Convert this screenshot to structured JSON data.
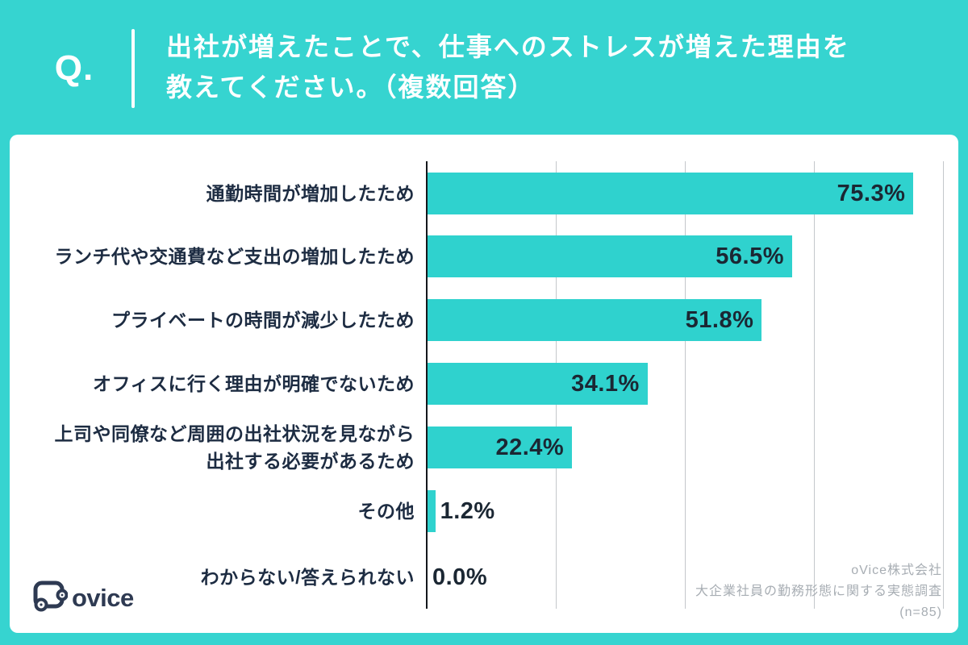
{
  "theme": {
    "teal": "#36d4d0",
    "bar": "#2fd2ce",
    "ink": "#1b2733",
    "label": "#1d2c42",
    "grid": "#c4c7cb",
    "axis": "#14181c",
    "source": "#a7adb3",
    "logo": "#2e3a52",
    "card": "#ffffff"
  },
  "header": {
    "q_label": "Q.",
    "title_line1": "出社が増えたことで、仕事へのストレスが増えた理由を",
    "title_line2": "教えてください。（複数回答）"
  },
  "chart_data": {
    "type": "bar",
    "orientation": "horizontal",
    "title": "出社が増えたことで、仕事へのストレスが増えた理由を教えてください。（複数回答）",
    "categories": [
      "通勤時間が増加したため",
      "ランチ代や交通費など支出の増加したため",
      "プライベートの時間が減少したため",
      "オフィスに行く理由が明確でないため",
      "上司や同僚など周囲の出社状況を見ながら\n出社する必要があるため",
      "その他",
      "わからない/答えられない"
    ],
    "values": [
      75.3,
      56.5,
      51.8,
      34.1,
      22.4,
      1.2,
      0.0
    ],
    "value_labels": [
      "75.3%",
      "56.5%",
      "51.8%",
      "34.1%",
      "22.4%",
      "1.2%",
      "0.0%"
    ],
    "xlim": [
      0,
      80
    ],
    "gridline_step": 20,
    "grid": true,
    "legend": false,
    "bar_color": "#2fd2ce"
  },
  "footer": {
    "logo_text": "ovice",
    "source_line1": "oVice株式会社",
    "source_line2": "大企業社員の勤務形態に関する実態調査",
    "source_line3": "(n=85)"
  }
}
